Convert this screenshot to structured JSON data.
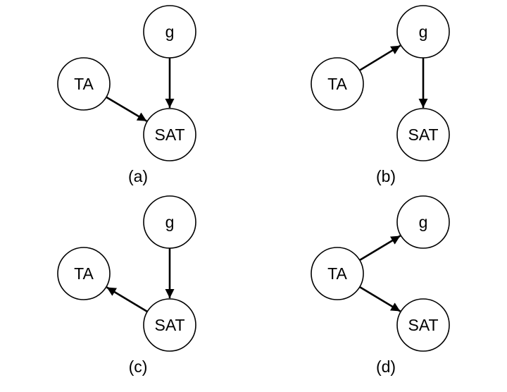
{
  "panels": [
    {
      "id": "a",
      "caption": "(a)",
      "nodes": {
        "g": "g",
        "ta": "TA",
        "sat": "SAT"
      },
      "edges": [
        {
          "from": "ta",
          "to": "sat"
        },
        {
          "from": "g",
          "to": "sat"
        }
      ]
    },
    {
      "id": "b",
      "caption": "(b)",
      "nodes": {
        "g": "g",
        "ta": "TA",
        "sat": "SAT"
      },
      "edges": [
        {
          "from": "ta",
          "to": "g"
        },
        {
          "from": "g",
          "to": "sat"
        }
      ]
    },
    {
      "id": "c",
      "caption": "(c)",
      "nodes": {
        "g": "g",
        "ta": "TA",
        "sat": "SAT"
      },
      "edges": [
        {
          "from": "g",
          "to": "sat"
        },
        {
          "from": "sat",
          "to": "ta"
        }
      ]
    },
    {
      "id": "d",
      "caption": "(d)",
      "nodes": {
        "g": "g",
        "ta": "TA",
        "sat": "SAT"
      },
      "edges": [
        {
          "from": "ta",
          "to": "g"
        },
        {
          "from": "ta",
          "to": "sat"
        }
      ]
    }
  ]
}
